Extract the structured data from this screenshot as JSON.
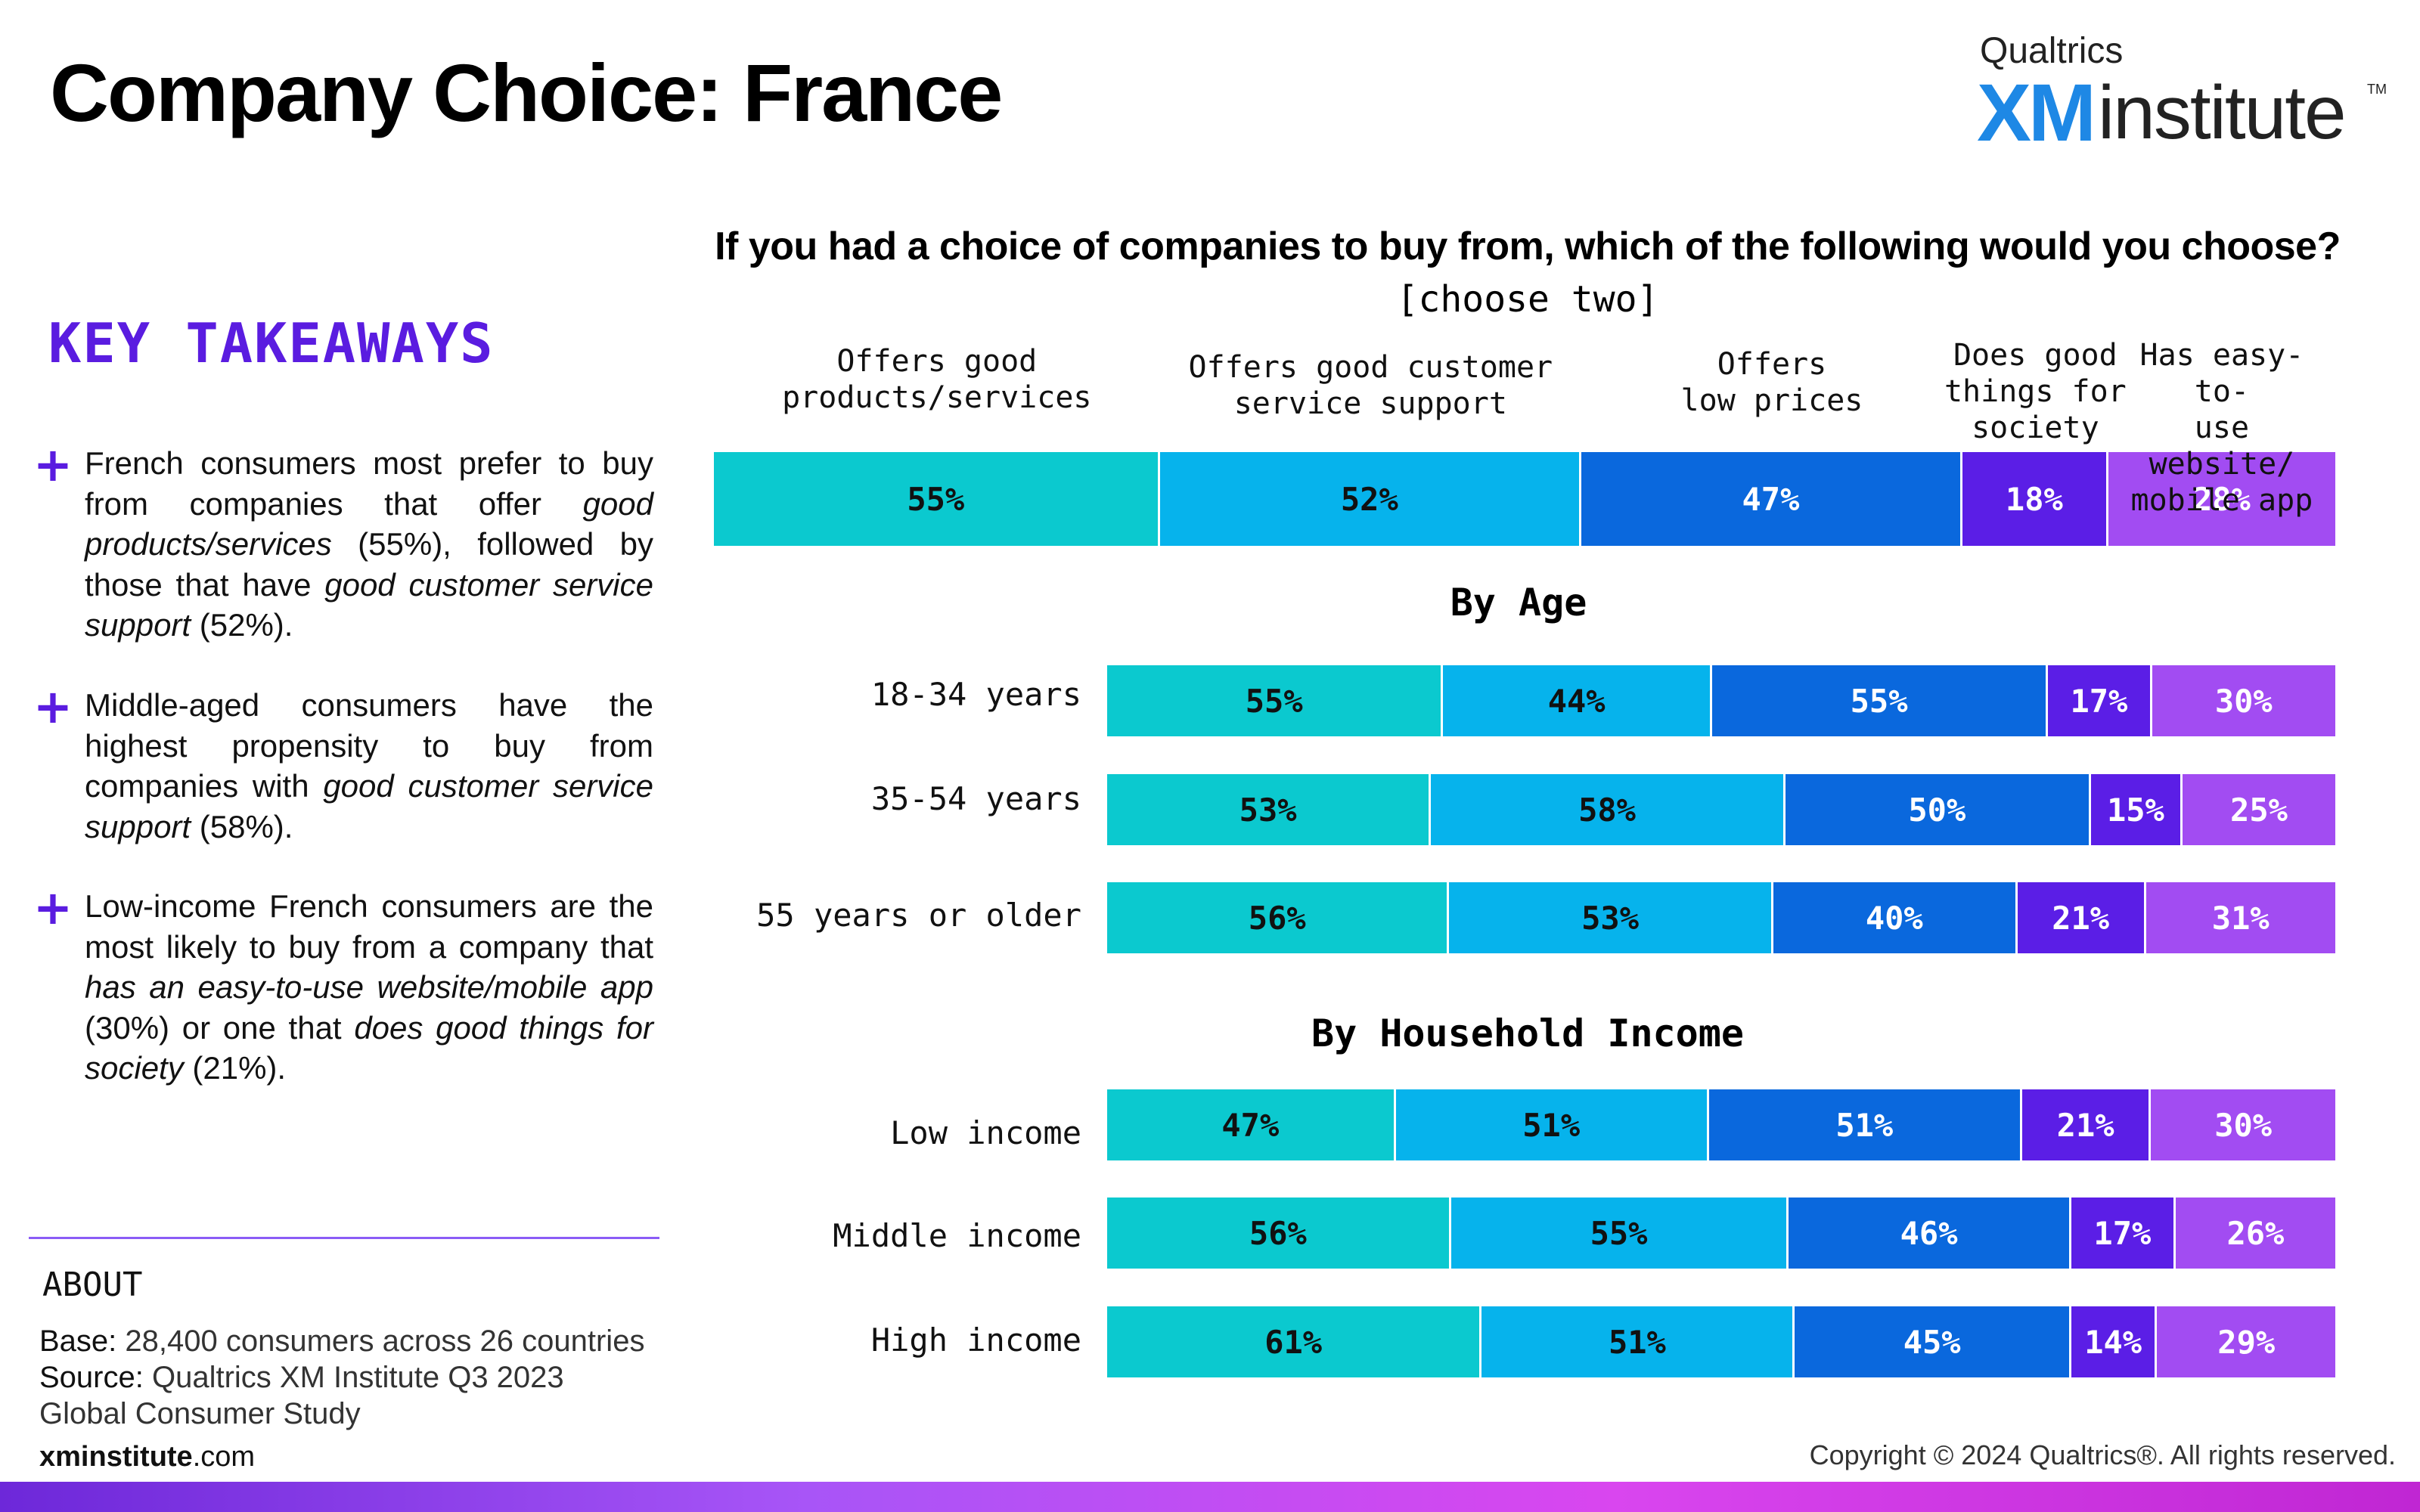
{
  "header": {
    "title": "Company Choice: France",
    "brand_top": "Qualtrics",
    "brand_xm": "XM",
    "brand_institute": "institute",
    "brand_tm": "TM"
  },
  "takeaways": {
    "heading": "KEY TAKEAWAYS",
    "items": [
      {
        "plus": "+",
        "parts": [
          {
            "t": "French consumers most prefer to buy from companies that offer ",
            "i": false
          },
          {
            "t": "good products/services",
            "i": true
          },
          {
            "t": " (55%), followed by those that have ",
            "i": false
          },
          {
            "t": "good customer service support",
            "i": true
          },
          {
            "t": " (52%).",
            "i": false
          }
        ]
      },
      {
        "plus": "+",
        "parts": [
          {
            "t": "Middle-aged consumers have the highest propensity to buy from companies with ",
            "i": false
          },
          {
            "t": "good customer service support",
            "i": true
          },
          {
            "t": " (58%).",
            "i": false
          }
        ]
      },
      {
        "plus": "+",
        "parts": [
          {
            "t": "Low-income French consumers are the most likely to buy from a company that ",
            "i": false
          },
          {
            "t": "has an easy-to-use website/mobile app",
            "i": true
          },
          {
            "t": " (30%) or one that ",
            "i": false
          },
          {
            "t": "does good things for society",
            "i": true
          },
          {
            "t": " (21%).",
            "i": false
          }
        ]
      }
    ]
  },
  "about": {
    "heading": "ABOUT",
    "base_label": "Base:",
    "base_text": " 28,400 consumers across 26 countries",
    "source_label": "Source:",
    "source_text": " Qualtrics XM Institute Q3 2023 Global Consumer Study"
  },
  "footer": {
    "site_bold": "xminstitute",
    "site_rest": ".com",
    "copyright": "Copyright © 2024 Qualtrics®. All rights reserved."
  },
  "chart_data": {
    "type": "bar",
    "orientation": "horizontal-stacked",
    "title": "If you had a choice of companies to buy from, which of the following would you choose?",
    "subtitle": "[choose two]",
    "series": [
      {
        "name": "Offers good\nproducts/services",
        "color": "#0bc9cf"
      },
      {
        "name": "Offers good customer\nservice support",
        "color": "#06b3ec"
      },
      {
        "name": "Offers\nlow prices",
        "color": "#0a68dd"
      },
      {
        "name": "Does good\nthings for\nsociety",
        "color": "#5b1ee6"
      },
      {
        "name": "Has easy-to-\nuse website/\nmobile app",
        "color": "#a24cf2"
      }
    ],
    "overall": {
      "values": [
        55,
        52,
        47,
        18,
        28
      ],
      "labels": [
        "55%",
        "52%",
        "47%",
        "18%",
        "28%"
      ]
    },
    "groups": [
      {
        "title": "By Age",
        "rows": [
          {
            "label": "18-34 years",
            "values": [
              55,
              44,
              55,
              17,
              30
            ],
            "labels": [
              "55%",
              "44%",
              "55%",
              "17%",
              "30%"
            ]
          },
          {
            "label": "35-54 years",
            "values": [
              53,
              58,
              50,
              15,
              25
            ],
            "labels": [
              "53%",
              "58%",
              "50%",
              "15%",
              "25%"
            ]
          },
          {
            "label": "55 years or older",
            "values": [
              56,
              53,
              40,
              21,
              31
            ],
            "labels": [
              "56%",
              "53%",
              "40%",
              "21%",
              "31%"
            ]
          }
        ]
      },
      {
        "title": "By Household Income",
        "rows": [
          {
            "label": "Low income",
            "values": [
              47,
              51,
              51,
              21,
              30
            ],
            "labels": [
              "47%",
              "51%",
              "51%",
              "21%",
              "30%"
            ]
          },
          {
            "label": "Middle income",
            "values": [
              56,
              55,
              46,
              17,
              26
            ],
            "labels": [
              "56%",
              "55%",
              "46%",
              "17%",
              "26%"
            ]
          },
          {
            "label": "High income",
            "values": [
              61,
              51,
              45,
              14,
              29
            ],
            "labels": [
              "61%",
              "51%",
              "45%",
              "14%",
              "29%"
            ]
          }
        ]
      }
    ],
    "label_colors": [
      "#111111",
      "#111111",
      "#ffffff",
      "#ffffff",
      "#ffffff"
    ]
  }
}
